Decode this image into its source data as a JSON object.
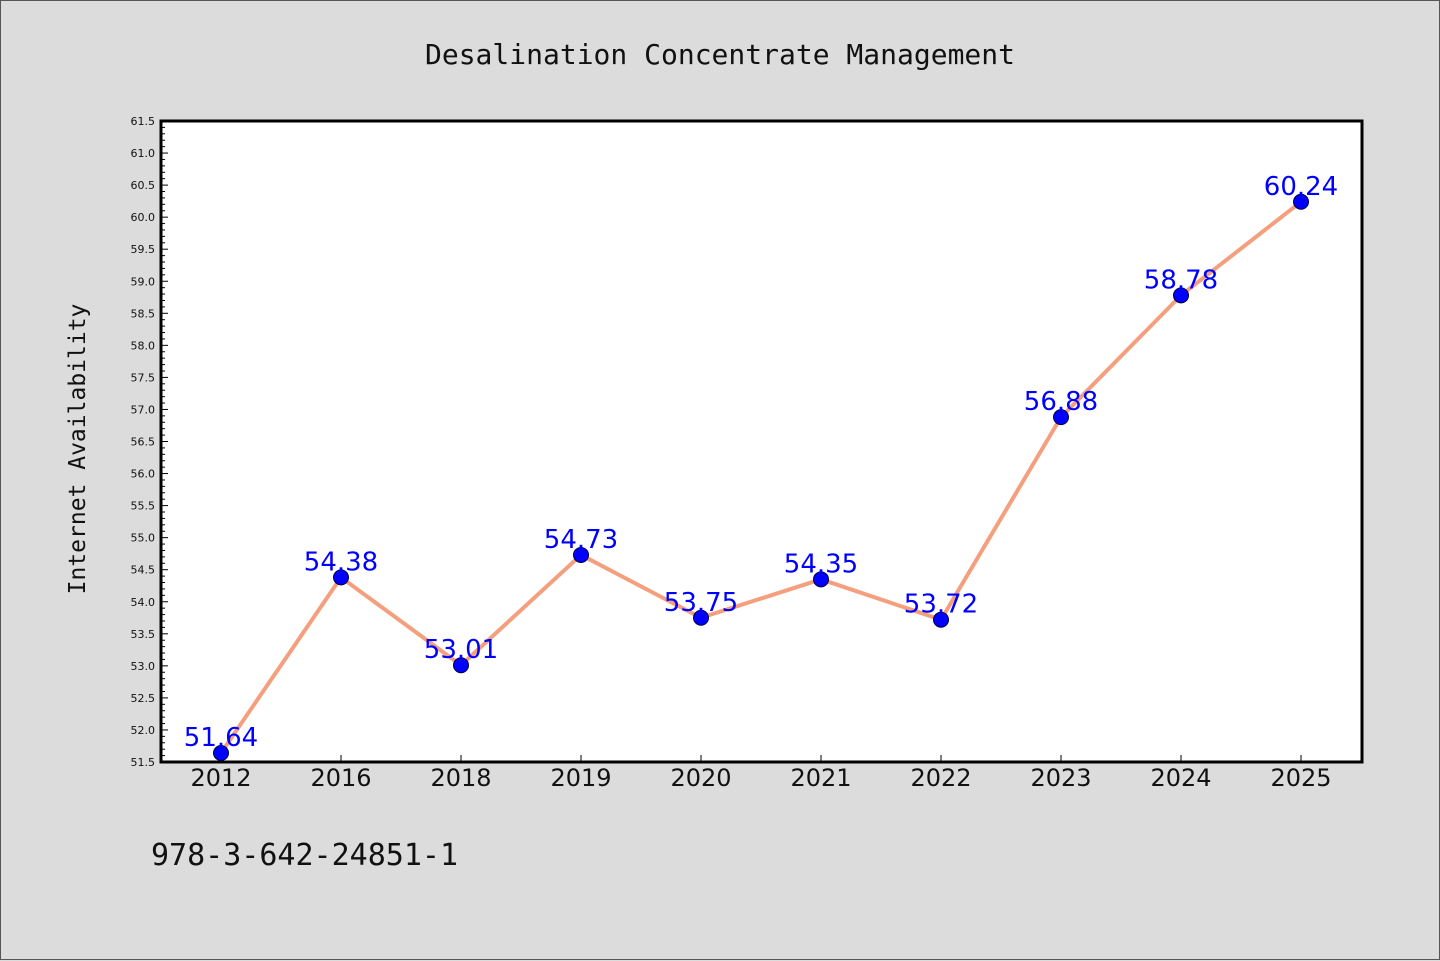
{
  "chart_data": {
    "type": "line",
    "title": "Desalination Concentrate Management",
    "xlabel": "",
    "ylabel": "Internet Availability",
    "categories": [
      "2012",
      "2016",
      "2018",
      "2019",
      "2020",
      "2021",
      "2022",
      "2023",
      "2024",
      "2025"
    ],
    "values": [
      51.64,
      54.38,
      53.01,
      54.73,
      53.75,
      54.35,
      53.72,
      56.88,
      58.78,
      60.24
    ],
    "data_labels": [
      "51.64",
      "54.38",
      "53.01",
      "54.73",
      "53.75",
      "54.35",
      "53.72",
      "56.88",
      "58.78",
      "60.24"
    ],
    "ylim": [
      51.5,
      61.5
    ],
    "yticks": [
      "51.5",
      "52.0",
      "52.5",
      "53.0",
      "53.5",
      "54.0",
      "54.5",
      "55.0",
      "55.5",
      "56.0",
      "56.5",
      "57.0",
      "57.5",
      "58.0",
      "58.5",
      "59.0",
      "59.5",
      "60.0",
      "60.5",
      "61.0",
      "61.5"
    ],
    "grid": false,
    "line_color": "#f4a07e",
    "marker_color": "#0000ff",
    "label_color": "#0000ff"
  },
  "footnote": "978-3-642-24851-1"
}
